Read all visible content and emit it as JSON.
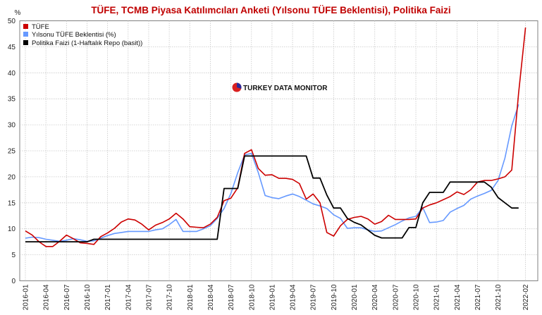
{
  "chart_data": {
    "type": "line",
    "title": "TÜFE, TCMB Piyasa Katılımcıları Anketi (Yılsonu TÜFE Beklentisi), Politika Faizi",
    "ylabel": "%",
    "xlabel": "",
    "ylim": [
      0,
      50
    ],
    "yticks": [
      "0",
      "5",
      "10",
      "15",
      "20",
      "25",
      "30",
      "35",
      "40",
      "45",
      "50"
    ],
    "xticks": [
      "2016-01",
      "2016-04",
      "2016-07",
      "2016-10",
      "2017-01",
      "2017-04",
      "2017-07",
      "2017-10",
      "2018-01",
      "2018-04",
      "2018-07",
      "2018-10",
      "2019-01",
      "2019-04",
      "2019-07",
      "2019-10",
      "2020-01",
      "2020-04",
      "2020-07",
      "2020-10",
      "2021-01",
      "2021-04",
      "2021-07",
      "2021-10",
      "2022-02"
    ],
    "grid": true,
    "legend_position": "top-left",
    "x_start": "2016-01",
    "series": [
      {
        "name": "TÜFE",
        "color": "#cc0000",
        "values": [
          9.6,
          8.8,
          7.5,
          6.6,
          6.6,
          7.6,
          8.8,
          8.1,
          7.3,
          7.2,
          7.0,
          8.5,
          9.2,
          10.1,
          11.3,
          11.9,
          11.7,
          10.9,
          9.8,
          10.7,
          11.2,
          11.9,
          13.0,
          11.9,
          10.4,
          10.3,
          10.2,
          10.9,
          12.2,
          15.4,
          15.9,
          17.9,
          24.5,
          25.2,
          21.6,
          20.3,
          20.4,
          19.7,
          19.7,
          19.5,
          18.7,
          15.7,
          16.7,
          15.0,
          9.3,
          8.6,
          10.6,
          11.8,
          12.2,
          12.4,
          11.9,
          10.9,
          11.4,
          12.6,
          11.8,
          11.8,
          11.8,
          11.9,
          14.0,
          14.6,
          15.0,
          15.6,
          16.2,
          17.1,
          16.6,
          17.5,
          19.0,
          19.3,
          19.3,
          19.6,
          20.0,
          21.3,
          36.1,
          48.7
        ],
        "label_values": []
      },
      {
        "name": "Yılsonu TÜFE Beklentisi (%)",
        "color": "#6699ff",
        "values": [
          8.2,
          8.4,
          8.3,
          8.0,
          7.8,
          7.6,
          7.8,
          8.1,
          7.9,
          7.6,
          7.7,
          8.2,
          8.7,
          9.1,
          9.3,
          9.5,
          9.5,
          9.5,
          9.5,
          9.8,
          10.0,
          10.8,
          11.8,
          9.5,
          9.5,
          9.5,
          10.0,
          10.6,
          12.0,
          13.9,
          16.8,
          20.8,
          24.2,
          24.5,
          20.8,
          16.4,
          16.0,
          15.8,
          16.3,
          16.7,
          16.2,
          15.5,
          14.8,
          14.4,
          13.9,
          12.7,
          12.0,
          10.1,
          10.2,
          10.2,
          9.8,
          9.5,
          9.6,
          10.2,
          10.8,
          11.5,
          12.1,
          12.4,
          14.1,
          11.2,
          11.3,
          11.6,
          13.2,
          13.9,
          14.5,
          15.7,
          16.3,
          16.8,
          17.4,
          19.3,
          23.6,
          29.8,
          33.9
        ],
        "label_values": []
      },
      {
        "name": "Politika Faizi (1-Haftalık Repo (basit))",
        "color": "#000000",
        "values": [
          7.5,
          7.5,
          7.5,
          7.5,
          7.5,
          7.5,
          7.5,
          7.5,
          7.5,
          7.5,
          8.0,
          8.0,
          8.0,
          8.0,
          8.0,
          8.0,
          8.0,
          8.0,
          8.0,
          8.0,
          8.0,
          8.0,
          8.0,
          8.0,
          8.0,
          8.0,
          8.0,
          8.0,
          8.0,
          17.75,
          17.75,
          17.75,
          24.0,
          24.0,
          24.0,
          24.0,
          24.0,
          24.0,
          24.0,
          24.0,
          24.0,
          24.0,
          19.75,
          19.75,
          16.5,
          14.0,
          14.0,
          12.0,
          11.25,
          10.75,
          9.75,
          8.75,
          8.25,
          8.25,
          8.25,
          8.25,
          10.25,
          10.25,
          15.0,
          17.0,
          17.0,
          17.0,
          19.0,
          19.0,
          19.0,
          19.0,
          19.0,
          19.0,
          18.0,
          16.0,
          15.0,
          14.0,
          14.0
        ],
        "label_values": []
      }
    ]
  },
  "watermark": {
    "text": "TURKEY DATA MONITOR"
  }
}
